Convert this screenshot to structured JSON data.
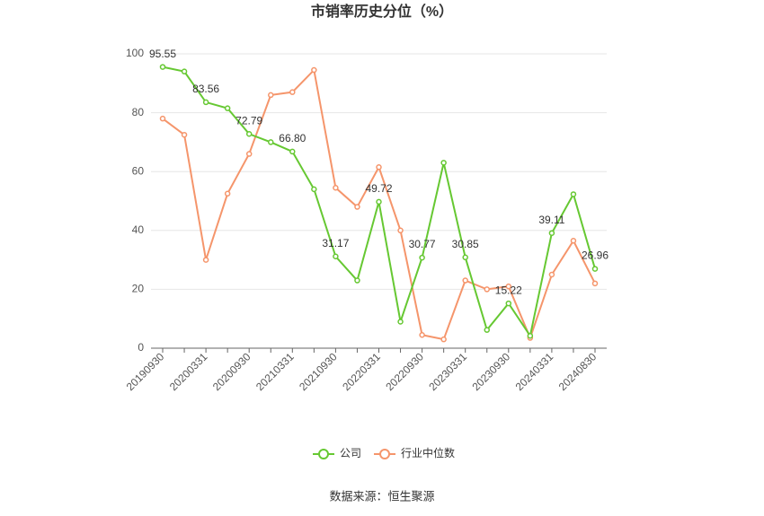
{
  "chart_data": {
    "type": "line",
    "title": "市销率历史分位（%）",
    "categories": [
      "20190930",
      null,
      "20200331",
      null,
      "20200930",
      null,
      "20210331",
      null,
      "20210930",
      null,
      "20220331",
      null,
      "20220930",
      null,
      "20230331",
      null,
      "20230930",
      null,
      "20240331",
      null,
      "20240830"
    ],
    "series": [
      {
        "name": "公司",
        "color": "#66c832",
        "values": [
          95.55,
          94,
          83.56,
          81.5,
          72.79,
          70,
          66.8,
          54,
          31.17,
          23,
          49.72,
          9,
          30.77,
          63,
          30.85,
          6.2,
          15.22,
          4.2,
          39.11,
          52.3,
          26.96
        ],
        "value_labels": [
          "95.55",
          null,
          "83.56",
          null,
          "72.79",
          null,
          "66.80",
          null,
          "31.17",
          null,
          "49.72",
          null,
          "30.77",
          null,
          "30.85",
          null,
          "15.22",
          null,
          "39.11",
          null,
          "26.96"
        ]
      },
      {
        "name": "行业中位数",
        "color": "#f5956b",
        "values": [
          78,
          72.5,
          30,
          52.5,
          66,
          86,
          87,
          94.5,
          54.5,
          48,
          61.5,
          40,
          4.5,
          3,
          23,
          20,
          21,
          3.5,
          25,
          36.5,
          22
        ]
      }
    ],
    "ylim": [
      0,
      100
    ],
    "yticks": [
      0,
      20,
      40,
      60,
      80,
      100
    ],
    "grid": true,
    "legend": "bottom",
    "source": "数据来源：恒生聚源"
  }
}
